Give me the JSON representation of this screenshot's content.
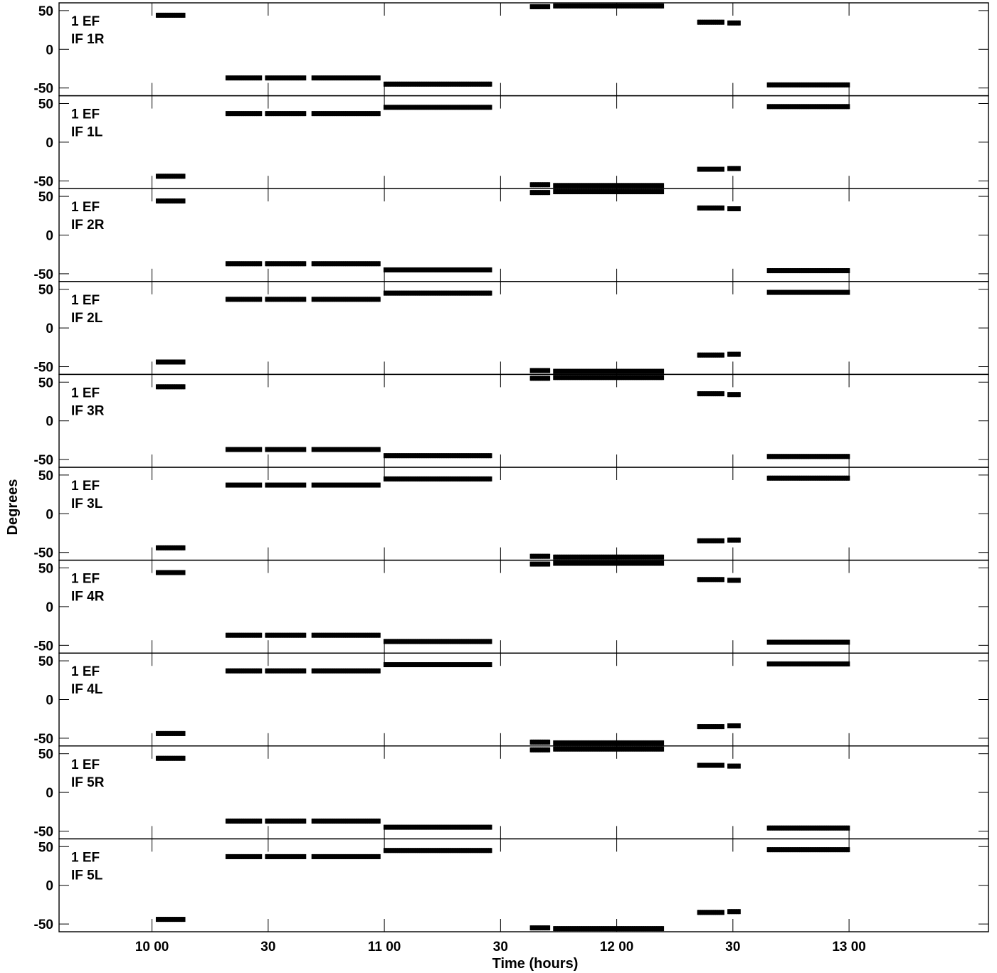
{
  "chart_data": {
    "type": "scatter",
    "xlabel": "Time (hours)",
    "ylabel": "Degrees",
    "x_unit": "hours",
    "xlim": [
      9.6,
      13.6
    ],
    "ylim": [
      -60,
      60
    ],
    "x_ticks": [
      {
        "value": 10.0,
        "label": "10 00"
      },
      {
        "value": 10.5,
        "label": "30"
      },
      {
        "value": 11.0,
        "label": "11 00"
      },
      {
        "value": 11.5,
        "label": "30"
      },
      {
        "value": 12.0,
        "label": "12 00"
      },
      {
        "value": 12.5,
        "label": "30"
      },
      {
        "value": 13.0,
        "label": "13 00"
      }
    ],
    "y_ticks": [
      {
        "value": 50,
        "label": "50"
      },
      {
        "value": 0,
        "label": "0"
      },
      {
        "value": -50,
        "label": "-50"
      }
    ],
    "scans": [
      {
        "x_start": 10.02,
        "x_end": 10.14,
        "sign": 1,
        "value": 44
      },
      {
        "x_start": 10.32,
        "x_end": 10.47,
        "sign": -1,
        "value": 37
      },
      {
        "x_start": 10.49,
        "x_end": 10.66,
        "sign": -1,
        "value": 37
      },
      {
        "x_start": 10.69,
        "x_end": 10.98,
        "sign": -1,
        "value": 37
      },
      {
        "x_start": 11.0,
        "x_end": 11.46,
        "sign": -1,
        "value": 45
      },
      {
        "x_start": 11.63,
        "x_end": 11.71,
        "sign": 1,
        "value": 55
      },
      {
        "x_start": 11.73,
        "x_end": 12.2,
        "sign": 1,
        "value": 56
      },
      {
        "x_start": 12.35,
        "x_end": 12.46,
        "sign": 1,
        "value": 35
      },
      {
        "x_start": 12.48,
        "x_end": 12.53,
        "sign": 1,
        "value": 34
      },
      {
        "x_start": 12.65,
        "x_end": 13.0,
        "sign": -1,
        "value": 46
      }
    ],
    "series": [
      {
        "name": "IF 1R",
        "title_lines": [
          "1 EF",
          "IF 1R"
        ],
        "polarity": 1
      },
      {
        "name": "IF 1L",
        "title_lines": [
          "1 EF",
          "IF 1L"
        ],
        "polarity": -1
      },
      {
        "name": "IF 2R",
        "title_lines": [
          "1 EF",
          "IF 2R"
        ],
        "polarity": 1
      },
      {
        "name": "IF 2L",
        "title_lines": [
          "1 EF",
          "IF 2L"
        ],
        "polarity": -1
      },
      {
        "name": "IF 3R",
        "title_lines": [
          "1 EF",
          "IF 3R"
        ],
        "polarity": 1
      },
      {
        "name": "IF 3L",
        "title_lines": [
          "1 EF",
          "IF 3L"
        ],
        "polarity": -1
      },
      {
        "name": "IF 4R",
        "title_lines": [
          "1 EF",
          "IF 4R"
        ],
        "polarity": 1
      },
      {
        "name": "IF 4L",
        "title_lines": [
          "1 EF",
          "IF 4L"
        ],
        "polarity": -1
      },
      {
        "name": "IF 5R",
        "title_lines": [
          "1 EF",
          "IF 5R"
        ],
        "polarity": 1
      },
      {
        "name": "IF 5L",
        "title_lines": [
          "1 EF",
          "IF 5L"
        ],
        "polarity": -1
      }
    ],
    "grid": false,
    "legend": "none"
  }
}
